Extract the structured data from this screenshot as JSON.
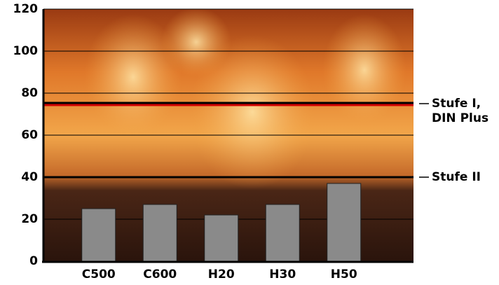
{
  "chart_data": {
    "type": "bar",
    "categories": [
      "C500",
      "C600",
      "H20",
      "H30",
      "H50"
    ],
    "values": [
      25,
      27,
      22,
      27,
      37
    ],
    "color": "#8a8a8a",
    "ylim": [
      0,
      120
    ],
    "yticks": [
      0,
      20,
      40,
      60,
      80,
      100,
      120
    ],
    "grid": true,
    "reference_lines": [
      {
        "value": 75,
        "color": "#d00000",
        "label_lines": [
          "Stufe I,",
          "DIN Plus"
        ]
      },
      {
        "value": 40,
        "color": "#000000",
        "label_lines": [
          "Stufe II"
        ]
      }
    ]
  }
}
